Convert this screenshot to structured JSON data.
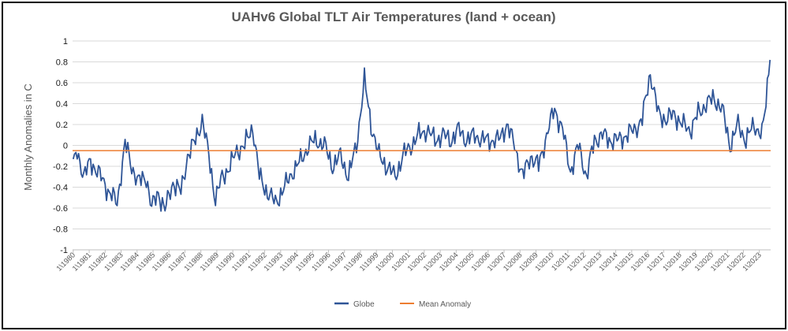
{
  "chart_data": {
    "type": "line",
    "title": "UAHv6 Global TLT Air Temperatures (land + ocean)",
    "ylabel": "Monthly Anomalies in C",
    "xlabel": "",
    "ylim": [
      -1,
      1
    ],
    "yticks": [
      1,
      0.8,
      0.6,
      0.4,
      0.2,
      0,
      -0.2,
      -0.4,
      -0.6,
      -0.8,
      -1
    ],
    "ytick_labels": [
      "1",
      "0.8",
      "0.6",
      "0.4",
      "0.2",
      "0",
      "-0.2",
      "-0.4",
      "-0.6",
      "-0.8",
      "-1"
    ],
    "x_start": "1\\1980",
    "x_end": "9\\2023",
    "x_tick_labels": [
      "1\\1980",
      "1\\1981",
      "1\\1982",
      "1\\1983",
      "1\\1984",
      "1\\1985",
      "1\\1986",
      "1\\1987",
      "1\\1988",
      "1\\1989",
      "1\\1990",
      "1\\1991",
      "1\\1992",
      "1\\1993",
      "1\\1994",
      "1\\1995",
      "1\\1996",
      "1\\1997",
      "1\\1998",
      "1\\1999",
      "1\\2000",
      "1\\2001",
      "1\\2002",
      "1\\2003",
      "1\\2004",
      "1\\2005",
      "1\\2006",
      "1\\2007",
      "1\\2008",
      "1\\2009",
      "1\\2010",
      "1\\2011",
      "1\\2012",
      "1\\2013",
      "1\\2014",
      "1\\2015",
      "1\\2016",
      "1\\2017",
      "1\\2018",
      "1\\2019",
      "1\\2020",
      "1\\2021",
      "1\\2022",
      "1\\2023"
    ],
    "grid": true,
    "legend_position": "bottom",
    "series": [
      {
        "name": "Globe",
        "color": "#2F5597",
        "monthly_step": 1,
        "keypoints": [
          [
            "1\\1980",
            -0.2
          ],
          [
            "4\\1980",
            -0.05
          ],
          [
            "9\\1980",
            -0.3
          ],
          [
            "2\\1981",
            -0.15
          ],
          [
            "7\\1981",
            -0.25
          ],
          [
            "12\\1981",
            -0.35
          ],
          [
            "4\\1982",
            -0.45
          ],
          [
            "10\\1982",
            -0.55
          ],
          [
            "4\\1983",
            0.02
          ],
          [
            "9\\1983",
            -0.2
          ],
          [
            "2\\1984",
            -0.35
          ],
          [
            "8\\1984",
            -0.3
          ],
          [
            "12\\1984",
            -0.6
          ],
          [
            "5\\1985",
            -0.45
          ],
          [
            "10\\1985",
            -0.62
          ],
          [
            "4\\1986",
            -0.35
          ],
          [
            "10\\1986",
            -0.45
          ],
          [
            "3\\1987",
            -0.1
          ],
          [
            "8\\1987",
            0.02
          ],
          [
            "2\\1988",
            0.25
          ],
          [
            "7\\1988",
            -0.1
          ],
          [
            "12\\1988",
            -0.52
          ],
          [
            "5\\1989",
            -0.3
          ],
          [
            "11\\1989",
            -0.2
          ],
          [
            "4\\1990",
            -0.05
          ],
          [
            "10\\1990",
            0.0
          ],
          [
            "4\\1991",
            0.18
          ],
          [
            "9\\1991",
            -0.3
          ],
          [
            "3\\1992",
            -0.45
          ],
          [
            "9\\1992",
            -0.55
          ],
          [
            "4\\1993",
            -0.4
          ],
          [
            "10\\1993",
            -0.25
          ],
          [
            "4\\1994",
            -0.15
          ],
          [
            "10\\1994",
            0.0
          ],
          [
            "4\\1995",
            0.05
          ],
          [
            "10\\1995",
            0.0
          ],
          [
            "4\\1996",
            -0.2
          ],
          [
            "10\\1996",
            -0.1
          ],
          [
            "4\\1997",
            -0.3
          ],
          [
            "10\\1997",
            0.0
          ],
          [
            "4\\1998",
            0.62
          ],
          [
            "9\\1998",
            0.2
          ],
          [
            "3\\1999",
            -0.1
          ],
          [
            "9\\1999",
            -0.2
          ],
          [
            "3\\2000",
            -0.3
          ],
          [
            "9\\2000",
            -0.1
          ],
          [
            "3\\2001",
            0.0
          ],
          [
            "9\\2001",
            0.1
          ],
          [
            "3\\2002",
            0.15
          ],
          [
            "9\\2002",
            0.05
          ],
          [
            "3\\2003",
            0.1
          ],
          [
            "9\\2003",
            0.05
          ],
          [
            "3\\2004",
            0.15
          ],
          [
            "9\\2004",
            0.05
          ],
          [
            "3\\2005",
            0.1
          ],
          [
            "9\\2005",
            0.05
          ],
          [
            "3\\2006",
            0.05
          ],
          [
            "9\\2006",
            0.05
          ],
          [
            "3\\2007",
            0.2
          ],
          [
            "9\\2007",
            0.0
          ],
          [
            "3\\2008",
            -0.3
          ],
          [
            "9\\2008",
            -0.1
          ],
          [
            "3\\2009",
            -0.2
          ],
          [
            "9\\2009",
            0.1
          ],
          [
            "3\\2010",
            0.35
          ],
          [
            "9\\2010",
            0.15
          ],
          [
            "3\\2011",
            -0.25
          ],
          [
            "9\\2011",
            0.0
          ],
          [
            "3\\2012",
            -0.3
          ],
          [
            "9\\2012",
            0.05
          ],
          [
            "3\\2013",
            0.1
          ],
          [
            "9\\2013",
            0.05
          ],
          [
            "3\\2014",
            0.05
          ],
          [
            "9\\2014",
            0.1
          ],
          [
            "3\\2015",
            0.15
          ],
          [
            "9\\2015",
            0.25
          ],
          [
            "3\\2016",
            0.7
          ],
          [
            "9\\2016",
            0.3
          ],
          [
            "3\\2017",
            0.25
          ],
          [
            "9\\2017",
            0.3
          ],
          [
            "3\\2018",
            0.2
          ],
          [
            "9\\2018",
            0.15
          ],
          [
            "3\\2019",
            0.3
          ],
          [
            "9\\2019",
            0.4
          ],
          [
            "3\\2020",
            0.45
          ],
          [
            "9\\2020",
            0.35
          ],
          [
            "3\\2021",
            0.0
          ],
          [
            "9\\2021",
            0.2
          ],
          [
            "3\\2022",
            0.05
          ],
          [
            "9\\2022",
            0.2
          ],
          [
            "3\\2023",
            0.1
          ],
          [
            "6\\2023",
            0.4
          ],
          [
            "9\\2023",
            0.9
          ]
        ]
      },
      {
        "name": "Mean Anomaly",
        "color": "#ED7D31",
        "value": -0.05
      }
    ]
  },
  "legend": {
    "globe_label": "Globe",
    "mean_label": "Mean Anomaly"
  }
}
